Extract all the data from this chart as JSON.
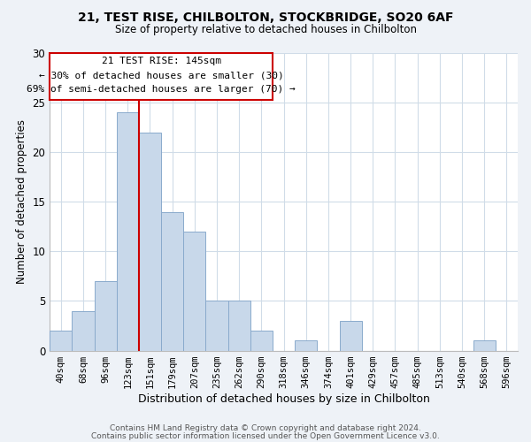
{
  "title": "21, TEST RISE, CHILBOLTON, STOCKBRIDGE, SO20 6AF",
  "subtitle": "Size of property relative to detached houses in Chilbolton",
  "xlabel": "Distribution of detached houses by size in Chilbolton",
  "ylabel": "Number of detached properties",
  "footer_lines": [
    "Contains HM Land Registry data © Crown copyright and database right 2024.",
    "Contains public sector information licensed under the Open Government Licence v3.0."
  ],
  "bin_labels": [
    "40sqm",
    "68sqm",
    "96sqm",
    "123sqm",
    "151sqm",
    "179sqm",
    "207sqm",
    "235sqm",
    "262sqm",
    "290sqm",
    "318sqm",
    "346sqm",
    "374sqm",
    "401sqm",
    "429sqm",
    "457sqm",
    "485sqm",
    "513sqm",
    "540sqm",
    "568sqm",
    "596sqm"
  ],
  "bar_values": [
    2,
    4,
    7,
    24,
    22,
    14,
    12,
    5,
    5,
    2,
    0,
    1,
    0,
    3,
    0,
    0,
    0,
    0,
    0,
    1,
    0
  ],
  "bar_color": "#c8d8ea",
  "bar_edge_color": "#8aaacc",
  "ylim": [
    0,
    30
  ],
  "yticks": [
    0,
    5,
    10,
    15,
    20,
    25,
    30
  ],
  "vline_x_idx": 3,
  "property_line_label": "21 TEST RISE: 145sqm",
  "annotation_line1": "← 30% of detached houses are smaller (30)",
  "annotation_line2": "69% of semi-detached houses are larger (70) →",
  "annotation_box_color": "#ffffff",
  "annotation_box_edge": "#cc0000",
  "vline_color": "#cc0000",
  "background_color": "#eef2f7",
  "plot_bg_color": "#ffffff",
  "grid_color": "#d0dce8"
}
